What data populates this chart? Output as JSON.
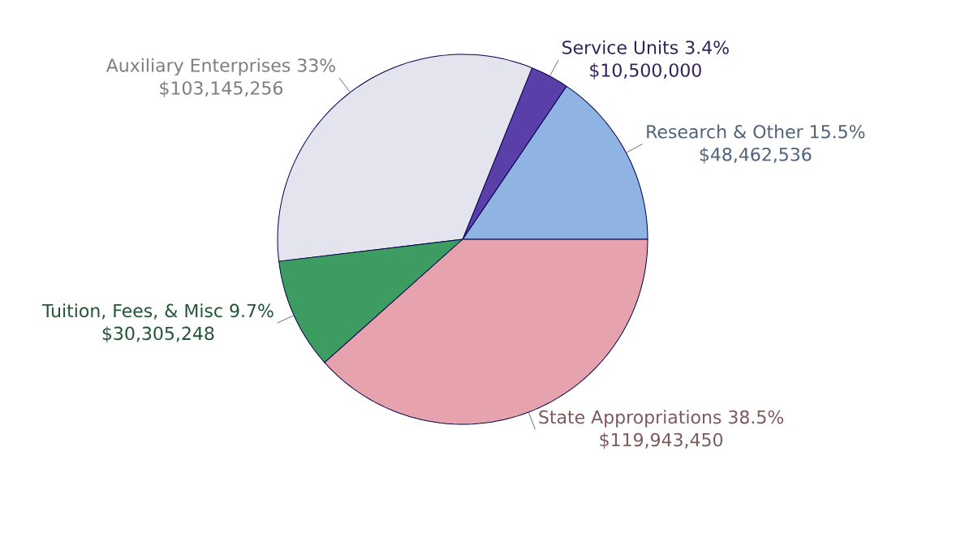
{
  "chart_data": {
    "type": "pie",
    "categories": [
      "Research & Other 15.5%",
      "Service Units 3.4%",
      "Auxiliary Enterprises 33%",
      "Tuition, Fees, & Misc 9.7%",
      "State Appropriations 38.5%"
    ],
    "values": [
      48462536,
      10500000,
      103145256,
      30305248,
      119943450
    ],
    "value_labels": [
      "$48,462,536",
      "$10,500,000",
      "$103,145,256",
      "$30,305,248",
      "$119,943,450"
    ],
    "colors": [
      "#8fb4e3",
      "#5b3fa8",
      "#e4e4ee",
      "#3d9c62",
      "#e7a3ad"
    ]
  }
}
